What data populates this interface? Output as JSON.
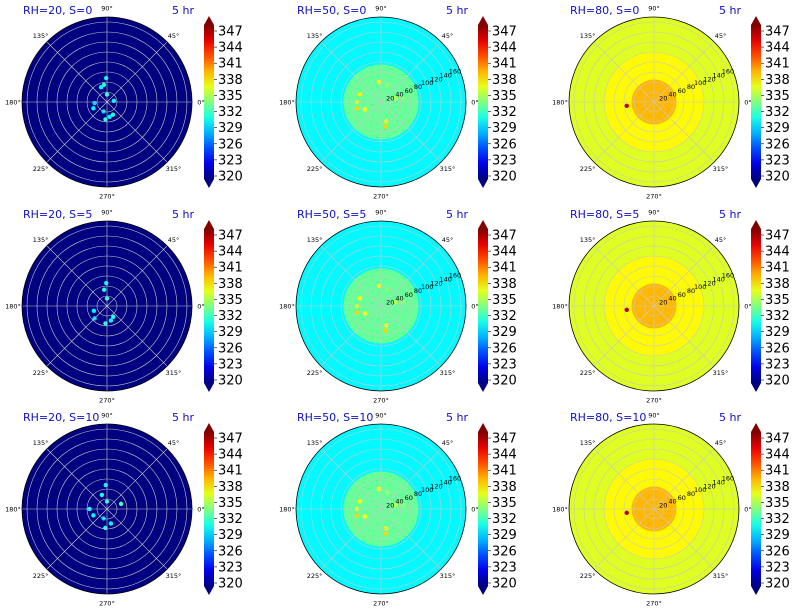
{
  "chart_data": {
    "type": "heatmap",
    "projection": "polar",
    "layout": "3x3 grid",
    "colormap": "jet",
    "colorbar": {
      "ticks": [
        "347",
        "344",
        "341",
        "338",
        "335",
        "332",
        "329",
        "326",
        "323",
        "320"
      ],
      "range": [
        320,
        347
      ],
      "extend": "both"
    },
    "angle_labels": [
      "0°",
      "45°",
      "90°",
      "135°",
      "180°",
      "225°",
      "270°",
      "315°"
    ],
    "radial_ticks": [
      "20",
      "40",
      "60",
      "80",
      "100",
      "120",
      "140",
      "160"
    ],
    "radial_max": 170,
    "panels": [
      {
        "title": "RH=20, S=0",
        "time": "5 hr",
        "background": 320,
        "core_value": null,
        "show_radial_labels": false,
        "cells": [
          {
            "r": 15,
            "theta": 90,
            "value": 331
          },
          {
            "r": 48,
            "theta": 92,
            "value": 330
          },
          {
            "r": 35,
            "theta": 100,
            "value": 331
          },
          {
            "r": 32,
            "theta": 112,
            "value": 330
          },
          {
            "r": 25,
            "theta": 185,
            "value": 329
          },
          {
            "r": 30,
            "theta": 205,
            "value": 330
          },
          {
            "r": 35,
            "theta": 265,
            "value": 331
          },
          {
            "r": 30,
            "theta": 280,
            "value": 330
          },
          {
            "r": 28,
            "theta": 295,
            "value": 331
          },
          {
            "r": 20,
            "theta": 250,
            "value": 329
          },
          {
            "r": 14,
            "theta": 10,
            "value": 330
          }
        ]
      },
      {
        "title": "RH=50, S=0",
        "time": "5 hr",
        "background": 330,
        "core_value": 333,
        "core_radius": 75,
        "show_radial_labels": true,
        "cells": [
          {
            "r": 40,
            "theta": 95,
            "value": 337
          },
          {
            "r": 35,
            "theta": 70,
            "value": 334
          },
          {
            "r": 45,
            "theta": 160,
            "value": 337
          },
          {
            "r": 48,
            "theta": 180,
            "value": 336
          },
          {
            "r": 50,
            "theta": 195,
            "value": 338
          },
          {
            "r": 35,
            "theta": 205,
            "value": 337
          },
          {
            "r": 40,
            "theta": 285,
            "value": 337
          },
          {
            "r": 50,
            "theta": 280,
            "value": 338
          },
          {
            "r": 30,
            "theta": 15,
            "value": 335
          },
          {
            "r": 45,
            "theta": 10,
            "value": 334
          }
        ]
      },
      {
        "title": "RH=80, S=0",
        "time": "5 hr",
        "background": 336,
        "core_value": 337,
        "core_radius": 100,
        "inner_value": 339,
        "inner_radius": 45,
        "show_radial_labels": true,
        "cells": [
          {
            "r": 55,
            "theta": 188,
            "value": 345
          }
        ]
      },
      {
        "title": "RH=20, S=5",
        "time": "5 hr",
        "background": 320,
        "core_value": null,
        "show_radial_labels": false,
        "cells": [
          {
            "r": 15,
            "theta": 90,
            "value": 331
          },
          {
            "r": 46,
            "theta": 92,
            "value": 330
          },
          {
            "r": 33,
            "theta": 100,
            "value": 331
          },
          {
            "r": 28,
            "theta": 200,
            "value": 330
          },
          {
            "r": 35,
            "theta": 265,
            "value": 331
          },
          {
            "r": 30,
            "theta": 285,
            "value": 330
          },
          {
            "r": 25,
            "theta": 300,
            "value": 331
          },
          {
            "r": 35,
            "theta": 225,
            "value": 329
          }
        ]
      },
      {
        "title": "RH=50, S=5",
        "time": "5 hr",
        "background": 330,
        "core_value": 333,
        "core_radius": 75,
        "show_radial_labels": true,
        "cells": [
          {
            "r": 40,
            "theta": 95,
            "value": 337
          },
          {
            "r": 35,
            "theta": 70,
            "value": 334
          },
          {
            "r": 45,
            "theta": 160,
            "value": 337
          },
          {
            "r": 48,
            "theta": 180,
            "value": 336
          },
          {
            "r": 50,
            "theta": 195,
            "value": 338
          },
          {
            "r": 35,
            "theta": 205,
            "value": 337
          },
          {
            "r": 40,
            "theta": 285,
            "value": 337
          },
          {
            "r": 50,
            "theta": 280,
            "value": 338
          },
          {
            "r": 30,
            "theta": 15,
            "value": 335
          },
          {
            "r": 45,
            "theta": 10,
            "value": 334
          }
        ]
      },
      {
        "title": "RH=80, S=5",
        "time": "5 hr",
        "background": 336,
        "core_value": 337,
        "core_radius": 100,
        "inner_value": 339,
        "inner_radius": 45,
        "show_radial_labels": true,
        "cells": [
          {
            "r": 55,
            "theta": 188,
            "value": 345
          }
        ]
      },
      {
        "title": "RH=20, S=10",
        "time": "5 hr",
        "background": 320,
        "core_value": null,
        "show_radial_labels": false,
        "cells": [
          {
            "r": 15,
            "theta": 90,
            "value": 331
          },
          {
            "r": 48,
            "theta": 93,
            "value": 330
          },
          {
            "r": 30,
            "theta": 110,
            "value": 331
          },
          {
            "r": 35,
            "theta": 180,
            "value": 330
          },
          {
            "r": 30,
            "theta": 205,
            "value": 330
          },
          {
            "r": 38,
            "theta": 265,
            "value": 331
          },
          {
            "r": 30,
            "theta": 285,
            "value": 330
          },
          {
            "r": 30,
            "theta": 20,
            "value": 332
          },
          {
            "r": 20,
            "theta": 250,
            "value": 329
          }
        ]
      },
      {
        "title": "RH=50, S=10",
        "time": "5 hr",
        "background": 330,
        "core_value": 333,
        "core_radius": 75,
        "show_radial_labels": true,
        "cells": [
          {
            "r": 40,
            "theta": 95,
            "value": 337
          },
          {
            "r": 35,
            "theta": 70,
            "value": 334
          },
          {
            "r": 45,
            "theta": 160,
            "value": 337
          },
          {
            "r": 48,
            "theta": 180,
            "value": 336
          },
          {
            "r": 50,
            "theta": 195,
            "value": 338
          },
          {
            "r": 35,
            "theta": 205,
            "value": 337
          },
          {
            "r": 40,
            "theta": 285,
            "value": 337
          },
          {
            "r": 50,
            "theta": 280,
            "value": 338
          },
          {
            "r": 30,
            "theta": 15,
            "value": 335
          },
          {
            "r": 45,
            "theta": 10,
            "value": 334
          }
        ]
      },
      {
        "title": "RH=80, S=10",
        "time": "5 hr",
        "background": 336,
        "core_value": 337,
        "core_radius": 100,
        "inner_value": 339,
        "inner_radius": 45,
        "show_radial_labels": true,
        "cells": [
          {
            "r": 55,
            "theta": 188,
            "value": 345
          }
        ]
      }
    ]
  }
}
